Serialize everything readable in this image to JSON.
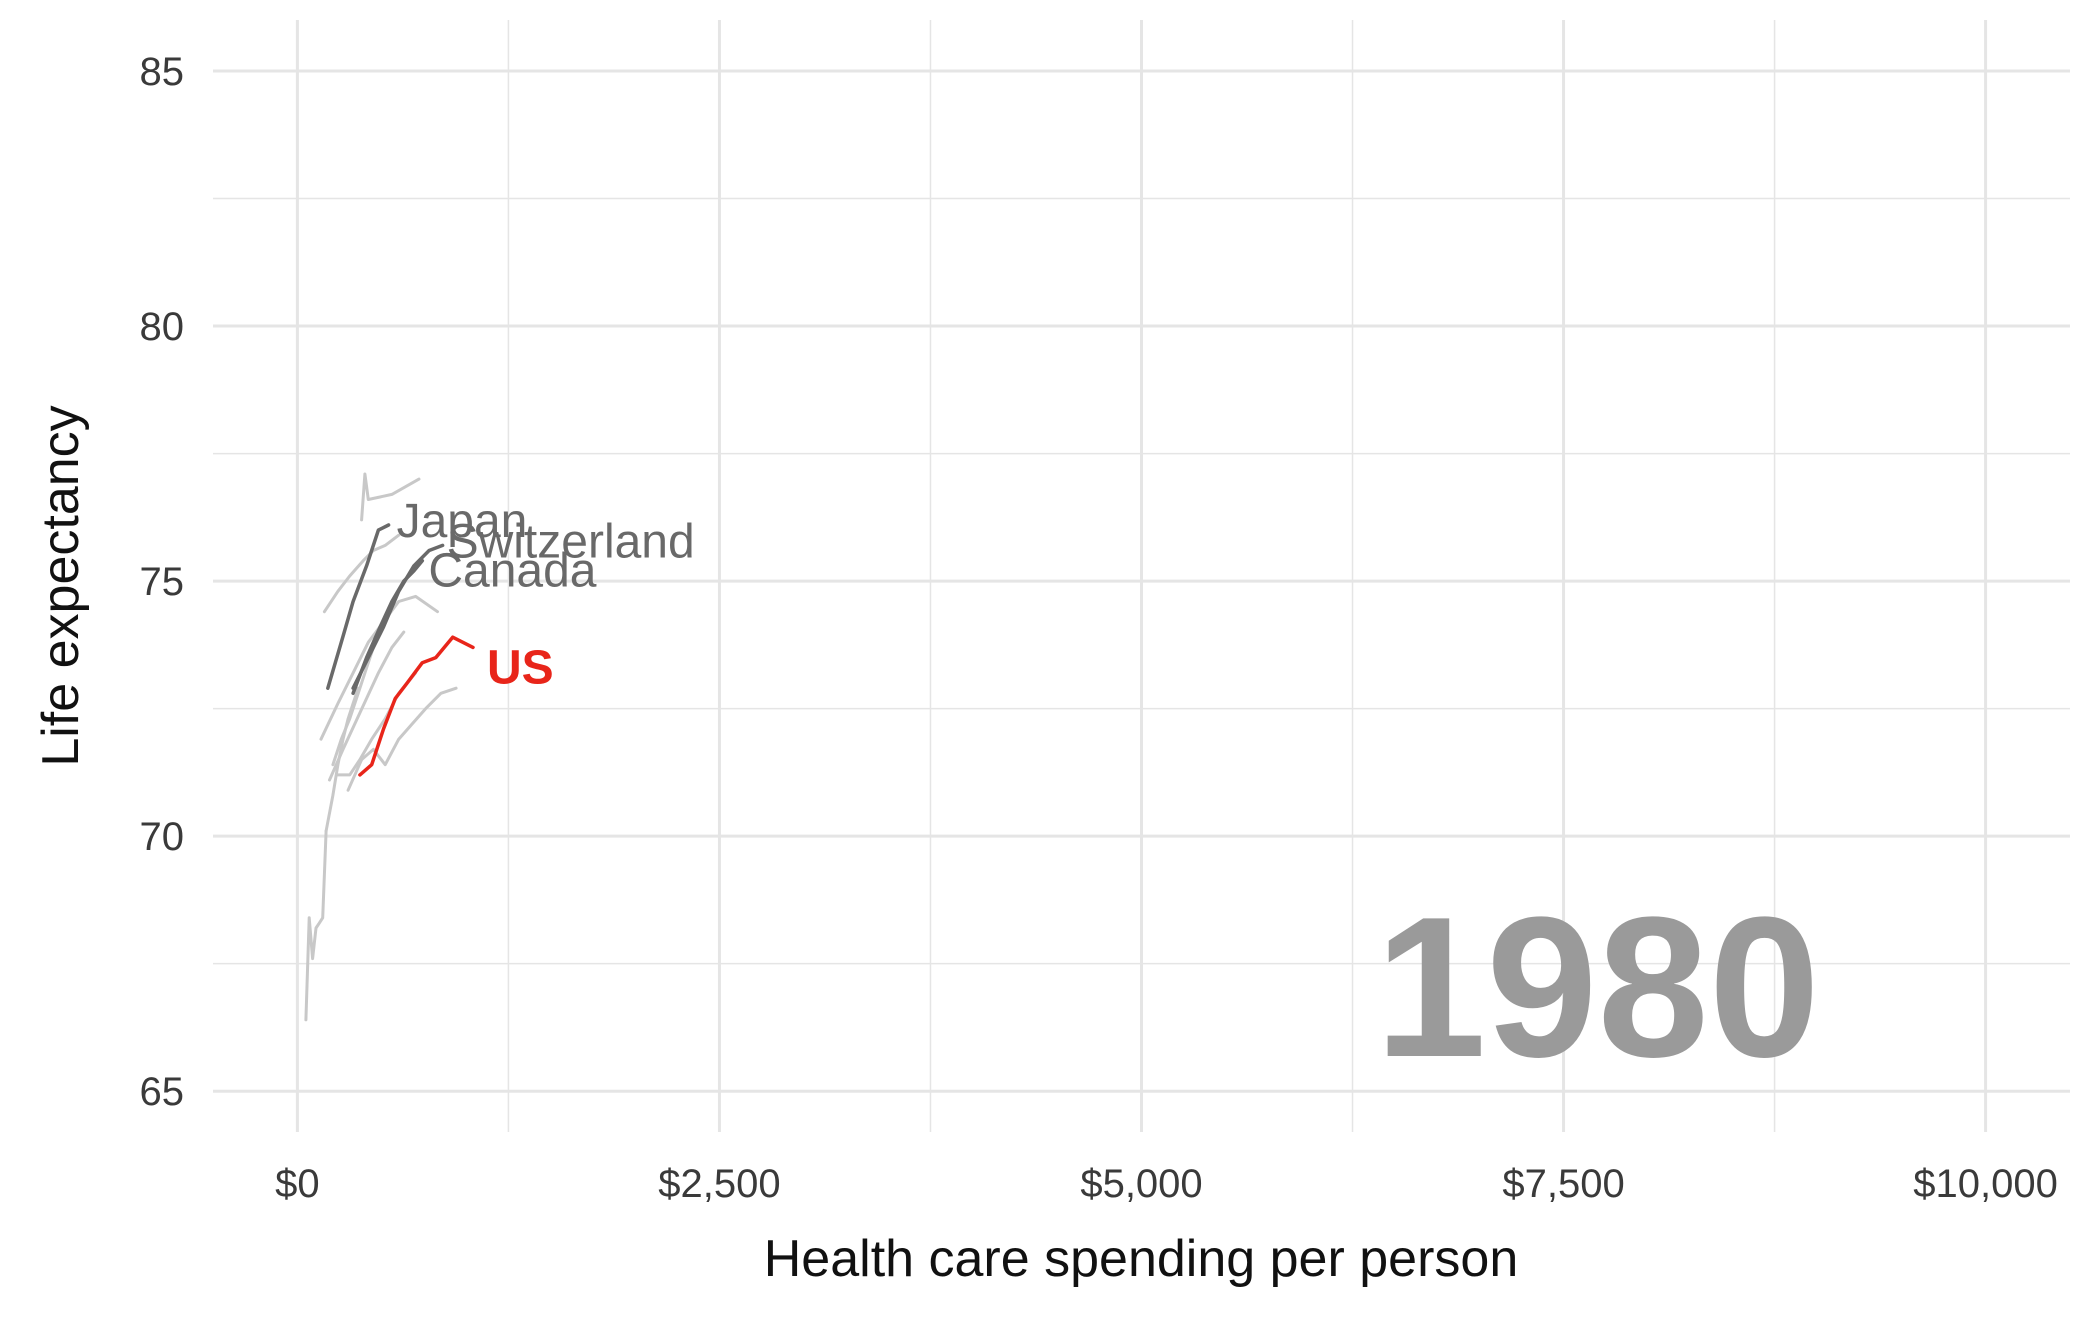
{
  "chart_data": {
    "type": "line",
    "title": "",
    "xlabel": "Health care spending per person",
    "ylabel": "Life expectancy",
    "xlim": [
      -500,
      10500
    ],
    "ylim": [
      64.2,
      86
    ],
    "x_ticks": [
      0,
      2500,
      5000,
      7500,
      10000
    ],
    "x_tick_labels": [
      "$0",
      "$2,500",
      "$5,000",
      "$7,500",
      "$10,000"
    ],
    "y_ticks": [
      65,
      70,
      75,
      80,
      85
    ],
    "y_tick_labels": [
      "65",
      "70",
      "75",
      "80",
      "85"
    ],
    "grid": true,
    "legend": "none",
    "year_label": "1980",
    "colors": {
      "background_series": "#c8c8c8",
      "highlight_series": "#696969",
      "us": "#e8251a",
      "grid": "#e5e5e5",
      "year": "#9a9a9a"
    },
    "series": [
      {
        "name": "Japan",
        "label": "Japan",
        "style": "highlight",
        "x": [
          180,
          260,
          330,
          410,
          480,
          540
        ],
        "y": [
          72.9,
          73.8,
          74.6,
          75.3,
          76.0,
          76.1
        ]
      },
      {
        "name": "Switzerland",
        "label": "Switzerland",
        "style": "highlight",
        "x": [
          330,
          420,
          510,
          600,
          690,
          780,
          860
        ],
        "y": [
          72.9,
          73.5,
          74.1,
          74.8,
          75.3,
          75.6,
          75.7
        ]
      },
      {
        "name": "Canada",
        "label": "Canada",
        "style": "highlight",
        "x": [
          330,
          410,
          490,
          560,
          630,
          690,
          740
        ],
        "y": [
          72.8,
          73.5,
          74.1,
          74.6,
          75.0,
          75.2,
          75.4
        ]
      },
      {
        "name": "US",
        "label": "US",
        "style": "us",
        "x": [
          370,
          440,
          510,
          580,
          650,
          740,
          820,
          920,
          1040
        ],
        "y": [
          71.2,
          71.4,
          72.1,
          72.7,
          73.0,
          73.4,
          73.5,
          73.9,
          73.7
        ]
      },
      {
        "style": "background",
        "x": [
          380,
          400,
          420,
          560,
          720
        ],
        "y": [
          76.2,
          77.1,
          76.6,
          76.7,
          77.0
        ]
      },
      {
        "style": "background",
        "x": [
          160,
          240,
          310,
          390,
          450,
          520,
          600
        ],
        "y": [
          74.4,
          74.8,
          75.1,
          75.4,
          75.6,
          75.7,
          75.9
        ]
      },
      {
        "style": "background",
        "x": [
          140,
          240,
          330,
          420,
          510,
          600,
          700,
          830
        ],
        "y": [
          71.9,
          72.6,
          73.2,
          73.8,
          74.2,
          74.6,
          74.7,
          74.4
        ]
      },
      {
        "style": "background",
        "x": [
          190,
          270,
          340,
          410,
          480,
          560,
          630
        ],
        "y": [
          71.1,
          71.7,
          72.2,
          72.7,
          73.2,
          73.7,
          74.0
        ]
      },
      {
        "style": "background",
        "x": [
          50,
          70,
          90,
          110,
          130,
          150,
          170
        ],
        "y": [
          66.4,
          68.4,
          67.6,
          68.2,
          68.3,
          68.4,
          70.1
        ]
      },
      {
        "style": "background",
        "x": [
          170,
          210,
          240,
          270,
          300,
          330,
          360
        ],
        "y": [
          70.1,
          70.8,
          71.4,
          71.9,
          72.3,
          72.6,
          72.9
        ]
      },
      {
        "style": "background",
        "x": [
          240,
          310,
          370,
          440,
          520,
          600,
          700
        ],
        "y": [
          71.2,
          71.2,
          71.5,
          71.9,
          72.3,
          72.8,
          73.2
        ]
      },
      {
        "style": "background",
        "x": [
          300,
          380,
          450,
          520,
          600,
          680,
          760,
          850,
          940
        ],
        "y": [
          70.9,
          71.5,
          71.7,
          71.4,
          71.9,
          72.2,
          72.5,
          72.8,
          72.9
        ]
      },
      {
        "style": "background",
        "x": [
          210,
          260,
          310,
          360,
          410,
          460,
          520
        ],
        "y": [
          71.4,
          71.9,
          72.3,
          72.8,
          73.3,
          73.8,
          74.3
        ]
      }
    ]
  }
}
